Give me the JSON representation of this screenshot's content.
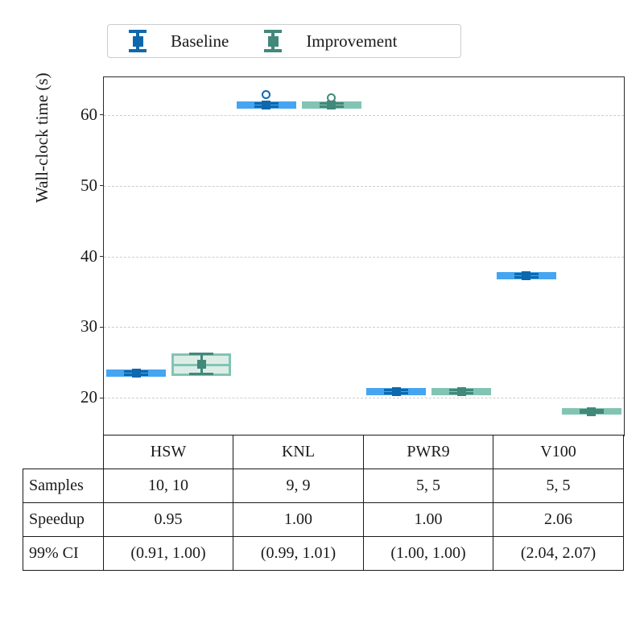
{
  "chart_data": {
    "type": "boxplot",
    "title": "",
    "ylabel": "Wall-clock time (s)",
    "ylim": [
      14.7,
      65.3
    ],
    "yticks": [
      20,
      30,
      40,
      50,
      60
    ],
    "grid": "dashed-horizontal",
    "legend_position": "top-outside",
    "categories": [
      "HSW",
      "KNL",
      "PWR9",
      "V100"
    ],
    "series": [
      {
        "name": "Baseline",
        "colors": {
          "box_edge": "#45a5f0",
          "box_fill": "#cde6fb",
          "accent": "#0e68ad"
        },
        "boxes": [
          {
            "q1": 23.35,
            "q3": 23.65,
            "median": 23.5,
            "mean": 23.5,
            "err_lo": 23.3,
            "err_hi": 23.7,
            "outliers": []
          },
          {
            "q1": 61.2,
            "q3": 61.6,
            "median": 61.4,
            "mean": 61.4,
            "err_lo": 61.15,
            "err_hi": 61.65,
            "outliers": [
              62.9
            ]
          },
          {
            "q1": 20.75,
            "q3": 21.05,
            "median": 20.9,
            "mean": 20.9,
            "err_lo": 20.7,
            "err_hi": 21.1,
            "outliers": []
          },
          {
            "q1": 37.15,
            "q3": 37.45,
            "median": 37.3,
            "mean": 37.3,
            "err_lo": 37.1,
            "err_hi": 37.5,
            "outliers": []
          }
        ]
      },
      {
        "name": "Improvement",
        "colors": {
          "box_edge": "#82c4b3",
          "box_fill": "#dcede7",
          "accent": "#42887b"
        },
        "boxes": [
          {
            "q1": 23.4,
            "q3": 26.0,
            "median": 24.7,
            "mean": 24.8,
            "err_lo": 23.4,
            "err_hi": 26.2,
            "outliers": []
          },
          {
            "q1": 61.2,
            "q3": 61.6,
            "median": 61.4,
            "mean": 61.4,
            "err_lo": 61.15,
            "err_hi": 61.65,
            "outliers": [
              62.4
            ]
          },
          {
            "q1": 20.75,
            "q3": 21.05,
            "median": 20.9,
            "mean": 20.9,
            "err_lo": 20.7,
            "err_hi": 21.1,
            "outliers": []
          },
          {
            "q1": 17.95,
            "q3": 18.25,
            "median": 18.1,
            "mean": 18.1,
            "err_lo": 17.9,
            "err_hi": 18.3,
            "outliers": []
          }
        ]
      }
    ]
  },
  "table": {
    "rows": [
      {
        "label": "Samples",
        "values": [
          "10, 10",
          "9, 9",
          "5, 5",
          "5, 5"
        ]
      },
      {
        "label": "Speedup",
        "values": [
          "0.95",
          "1.00",
          "1.00",
          "2.06"
        ]
      },
      {
        "label": "99% CI",
        "values": [
          "(0.91, 1.00)",
          "(0.99, 1.01)",
          "(1.00, 1.00)",
          "(2.04, 2.07)"
        ]
      }
    ]
  }
}
